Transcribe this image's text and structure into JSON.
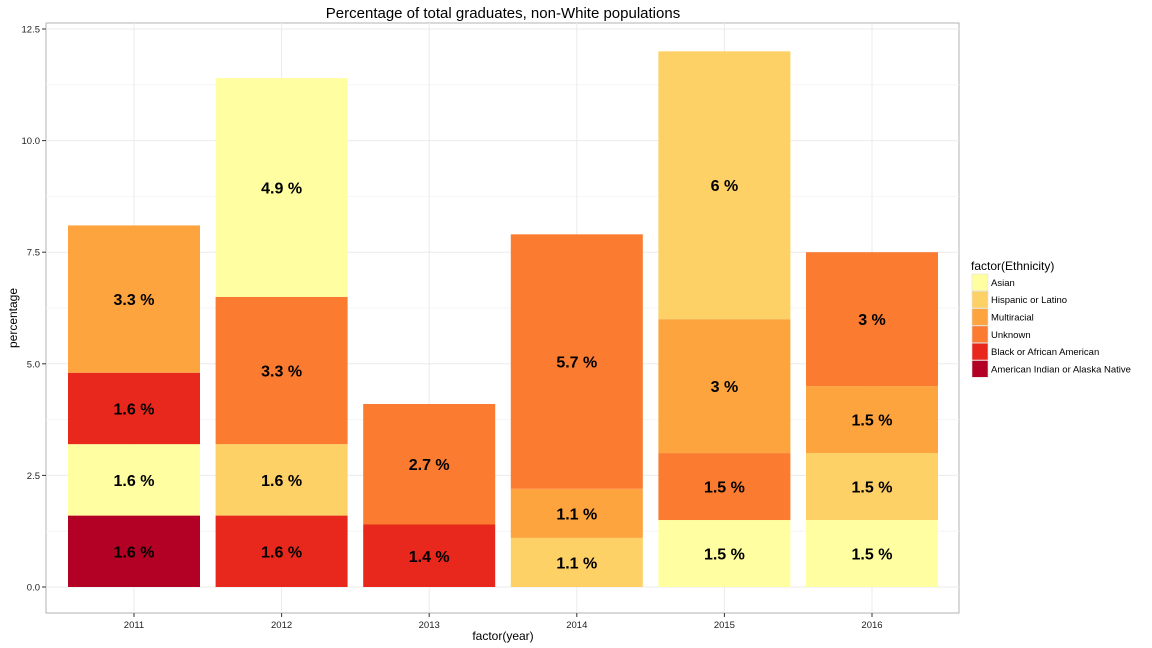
{
  "chart_data": {
    "type": "bar",
    "stacked": true,
    "title": "Percentage of total graduates, non-White populations",
    "xlabel": "factor(year)",
    "ylabel": "percentage",
    "ylim": [
      0,
      12.5
    ],
    "yticks": [
      "0.0",
      "2.5",
      "5.0",
      "7.5",
      "10.0",
      "12.5"
    ],
    "categories": [
      "2011",
      "2012",
      "2013",
      "2014",
      "2015",
      "2016"
    ],
    "grid": true,
    "legend": {
      "title": "factor(Ethnicity)",
      "placement": "right",
      "entries": [
        {
          "name": "Asian",
          "color": "#FFFFA1"
        },
        {
          "name": "Hispanic or Latino",
          "color": "#FED166"
        },
        {
          "name": "Multiracial",
          "color": "#FDA43E"
        },
        {
          "name": "Unknown",
          "color": "#FB7B30"
        },
        {
          "name": "Black or African American",
          "color": "#E8271D"
        },
        {
          "name": "American Indian or Alaska Native",
          "color": "#B30025"
        }
      ]
    },
    "series": [
      {
        "name": "American Indian or Alaska Native",
        "values": [
          1.6,
          0,
          0,
          0,
          0,
          0
        ],
        "labels": [
          "1.6 %",
          "",
          "",
          "",
          "",
          ""
        ]
      },
      {
        "name": "Black or African American",
        "values": [
          0,
          1.6,
          1.4,
          0,
          0,
          0
        ],
        "labels": [
          "",
          "1.6 %",
          "1.4 %",
          "",
          "",
          ""
        ]
      },
      {
        "name": "Asian",
        "values": [
          1.6,
          0,
          0,
          0,
          1.5,
          1.5
        ],
        "labels": [
          "1.6 %",
          "",
          "",
          "",
          "1.5 %",
          "1.5 %"
        ]
      },
      {
        "name": "Hispanic or Latino",
        "values": [
          0,
          1.6,
          0,
          1.1,
          0,
          1.5
        ],
        "labels": [
          "",
          "1.6 %",
          "",
          "1.1 %",
          "",
          "1.5 %"
        ]
      },
      {
        "name": "Unknown",
        "values": [
          0,
          0,
          0,
          0,
          1.5,
          0
        ],
        "labels": [
          "",
          "",
          "",
          "",
          "1.5 %",
          ""
        ]
      },
      {
        "name": "Black or African American",
        "values": [
          1.6,
          0,
          0,
          0,
          0,
          0
        ],
        "labels": [
          "1.6 %",
          "",
          "",
          "",
          "",
          ""
        ]
      },
      {
        "name": "Multiracial",
        "values": [
          3.3,
          0,
          0,
          1.1,
          3.0,
          1.5
        ],
        "labels": [
          "3.3 %",
          "",
          "",
          "1.1 %",
          "3 %",
          "1.5 %"
        ]
      },
      {
        "name": "Unknown",
        "values": [
          0,
          3.3,
          2.7,
          5.7,
          0,
          3.0
        ],
        "labels": [
          "",
          "3.3 %",
          "2.7 %",
          "5.7 %",
          "",
          "3 %"
        ]
      },
      {
        "name": "Asian",
        "values": [
          0,
          4.9,
          0,
          0,
          0,
          0
        ],
        "labels": [
          "",
          "4.9 %",
          "",
          "",
          "",
          ""
        ]
      },
      {
        "name": "Hispanic or Latino",
        "values": [
          0,
          0,
          0,
          0,
          6.0,
          0
        ],
        "labels": [
          "",
          "",
          "",
          "",
          "6 %",
          ""
        ]
      }
    ]
  }
}
